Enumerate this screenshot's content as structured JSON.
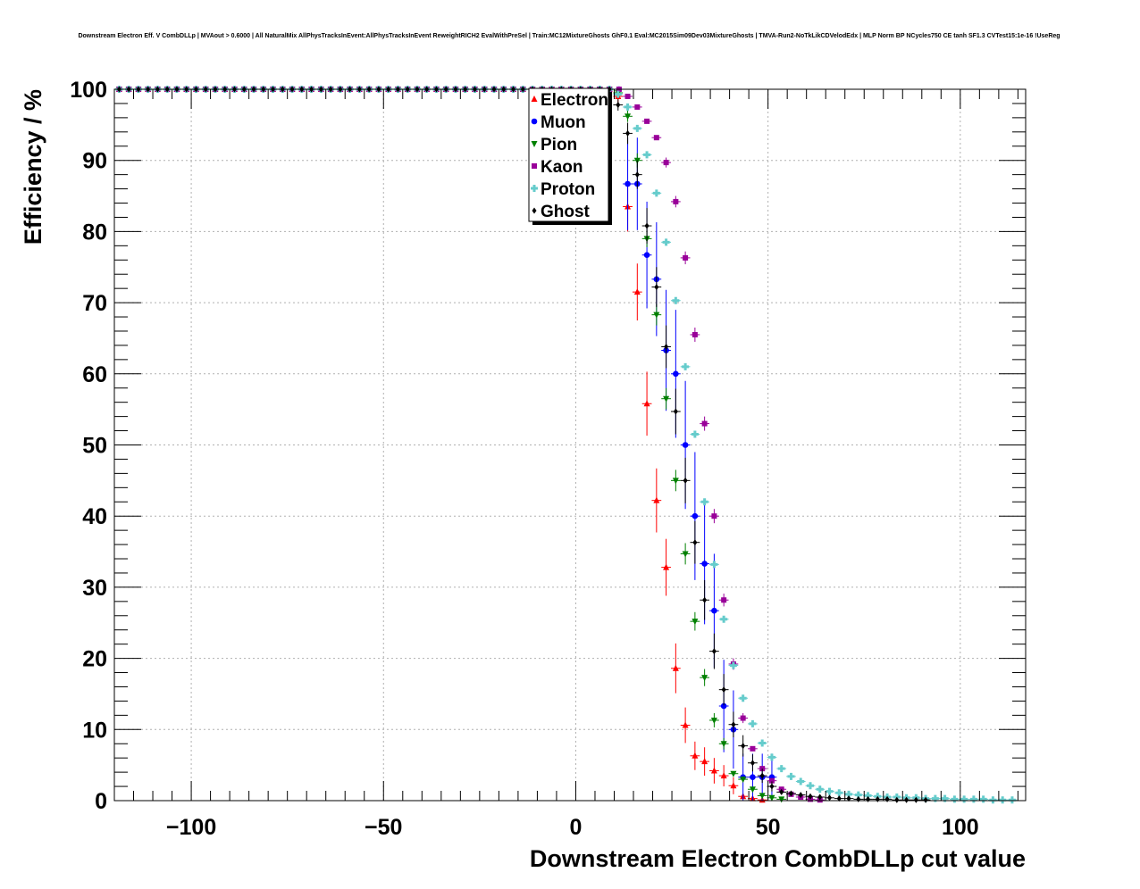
{
  "chart_data": {
    "type": "scatter",
    "title": "Downstream Electron Eff. V CombDLLp | MVAout > 0.6000 | All NaturalMix AllPhysTracksInEvent:AllPhysTracksInEvent ReweightRICH2 EvalWithPreSel | Train:MC12MixtureGhosts GhF0.1 Eval:MC2015Sim09Dev03MixtureGhosts | TMVA-Run2-NoTkLikCDVelodEdx | MLP Norm BP NCycles750 CE tanh SF1.3 CVTest15:1e-16 !UseReg",
    "xlabel": "Downstream Electron CombDLLp cut value",
    "ylabel": "Efficiency / %",
    "xlim": [
      -120,
      117
    ],
    "ylim": [
      0,
      100
    ],
    "xticks": [
      -100,
      -50,
      0,
      50,
      100
    ],
    "xtick_labels": [
      "−100",
      "−50",
      "0",
      "50",
      "100"
    ],
    "yticks": [
      0,
      10,
      20,
      30,
      40,
      50,
      60,
      70,
      80,
      90,
      100
    ],
    "grid": true,
    "legend_position": "top-center",
    "series": [
      {
        "name": "Electron",
        "color": "#ff0000",
        "marker": "triangle-up",
        "x": [
          11,
          13.5,
          16,
          18.5,
          21,
          23.5,
          26,
          28.5,
          31,
          33.5,
          36,
          38.5,
          41,
          43.5,
          46,
          48.5
        ],
        "y": [
          99,
          83.5,
          71.5,
          55.8,
          42.2,
          32.8,
          18.6,
          10.6,
          6.3,
          5.5,
          4.2,
          3.5,
          2.1,
          0.6,
          0.3,
          0.1
        ],
        "err": [
          1,
          3.5,
          4,
          4.5,
          4.5,
          4,
          3.5,
          2.5,
          2,
          2,
          1.8,
          1.5,
          1.2,
          0.6,
          0.3,
          0.1
        ]
      },
      {
        "name": "Muon",
        "color": "#0000ff",
        "marker": "circle",
        "x": [
          13.5,
          16,
          18.5,
          21,
          23.5,
          26,
          28.5,
          31,
          33.5,
          36,
          38.5,
          41,
          43.5,
          46,
          48.5,
          51
        ],
        "y": [
          86.7,
          86.7,
          76.7,
          73.3,
          63.3,
          60,
          50,
          40,
          33.3,
          26.7,
          13.3,
          10,
          3.3,
          3.3,
          3.3,
          3.3
        ],
        "err": [
          6.5,
          6.5,
          7.5,
          8,
          8.5,
          9,
          9,
          9,
          8.5,
          8,
          6.5,
          5.5,
          3.3,
          3.3,
          3.3,
          3.3
        ]
      },
      {
        "name": "Pion",
        "color": "#008000",
        "marker": "triangle-down",
        "x": [
          11,
          13.5,
          16,
          18.5,
          21,
          23.5,
          26,
          28.5,
          31,
          33.5,
          36,
          38.5,
          41,
          43.5,
          46,
          48.5,
          51,
          53.5
        ],
        "y": [
          99.5,
          96.2,
          90,
          79,
          68.3,
          56.5,
          45,
          34.7,
          25.2,
          17.3,
          11.3,
          8,
          3.8,
          3,
          1.6,
          0.7,
          0.4,
          0.2
        ],
        "err": [
          0.5,
          0.8,
          1,
          1.2,
          1.5,
          1.5,
          1.5,
          1.5,
          1.3,
          1.2,
          1,
          0.8,
          0.6,
          0.5,
          0.4,
          0.3,
          0.2,
          0.1
        ]
      },
      {
        "name": "Kaon",
        "color": "#990099",
        "marker": "square",
        "x": [
          13.5,
          16,
          18.5,
          21,
          23.5,
          26,
          28.5,
          31,
          33.5,
          36,
          38.5,
          41,
          43.5,
          46,
          48.5,
          51,
          53.5,
          56,
          58.5,
          61,
          63.5
        ],
        "y": [
          99,
          97.5,
          95.5,
          93.2,
          89.7,
          84.2,
          76.3,
          65.5,
          53,
          40,
          28.2,
          19.2,
          11.6,
          7.3,
          4.5,
          2.8,
          1.6,
          0.9,
          0.5,
          0.2,
          0.1
        ],
        "err": [
          0.3,
          0.4,
          0.5,
          0.6,
          0.7,
          0.8,
          0.9,
          1,
          1,
          1,
          0.9,
          0.8,
          0.7,
          0.5,
          0.4,
          0.3,
          0.2,
          0.2,
          0.1,
          0.1,
          0.1
        ]
      },
      {
        "name": "Proton",
        "color": "#66cccc",
        "marker": "cross",
        "x": [
          11,
          13.5,
          16,
          18.5,
          21,
          23.5,
          26,
          28.5,
          31,
          33.5,
          36,
          38.5,
          41,
          43.5,
          46,
          48.5,
          51,
          53.5,
          56,
          58.5,
          61,
          63.5,
          66,
          68.5,
          71,
          73.5,
          76,
          78.5,
          81,
          83.5,
          86,
          88.5,
          91,
          93.5,
          96,
          98.5,
          101,
          103.5,
          106,
          108.5,
          111,
          113.5
        ],
        "y": [
          99.3,
          97.5,
          94.5,
          90.8,
          85.4,
          78.5,
          70.3,
          61,
          51.5,
          42,
          33.2,
          25.5,
          19,
          14.4,
          10.8,
          8.1,
          6.1,
          4.5,
          3.4,
          2.7,
          2.1,
          1.6,
          1.3,
          1.1,
          0.9,
          0.8,
          0.7,
          0.6,
          0.5,
          0.5,
          0.4,
          0.4,
          0.3,
          0.3,
          0.3,
          0.2,
          0.2,
          0.2,
          0.2,
          0.1,
          0.1,
          0.1
        ],
        "err": [
          0.2,
          0.2,
          0.3,
          0.3,
          0.4,
          0.4,
          0.5,
          0.5,
          0.5,
          0.5,
          0.5,
          0.4,
          0.4,
          0.3,
          0.3,
          0.3,
          0.2,
          0.2,
          0.2,
          0.2,
          0.1,
          0.1,
          0.1,
          0.1,
          0.1,
          0.1,
          0.1,
          0.1,
          0.1,
          0.1,
          0.1,
          0.1,
          0.1,
          0.1,
          0.1,
          0.1,
          0.1,
          0.1,
          0.1,
          0.1,
          0.1,
          0.1
        ]
      },
      {
        "name": "Ghost",
        "color": "#000000",
        "marker": "diamond",
        "x": [
          11,
          13.5,
          16,
          18.5,
          21,
          23.5,
          26,
          28.5,
          31,
          33.5,
          36,
          38.5,
          41,
          43.5,
          46,
          48.5,
          51,
          53.5,
          56,
          58.5,
          61,
          63.5,
          66,
          68.5,
          71,
          73.5,
          76,
          78.5,
          81,
          83.5,
          86,
          88.5,
          91
        ],
        "y": [
          97.8,
          93.8,
          88,
          80.8,
          72.2,
          63.8,
          54.7,
          45,
          36.3,
          28.2,
          21,
          15.6,
          10.7,
          7.7,
          5.3,
          3.5,
          2,
          1.2,
          1,
          0.8,
          0.6,
          0.5,
          0.4,
          0.3,
          0.3,
          0.2,
          0.2,
          0.2,
          0.2,
          0.1,
          0.1,
          0.1,
          0.1
        ],
        "err": [
          0.8,
          1.5,
          2,
          2.5,
          2.8,
          3,
          3.2,
          3.2,
          3,
          2.8,
          2.5,
          2.2,
          1.8,
          1.5,
          1.2,
          1,
          0.7,
          0.5,
          0.4,
          0.3,
          0.3,
          0.2,
          0.2,
          0.2,
          0.1,
          0.1,
          0.1,
          0.1,
          0.1,
          0.1,
          0.1,
          0.1,
          0.1
        ]
      }
    ]
  }
}
